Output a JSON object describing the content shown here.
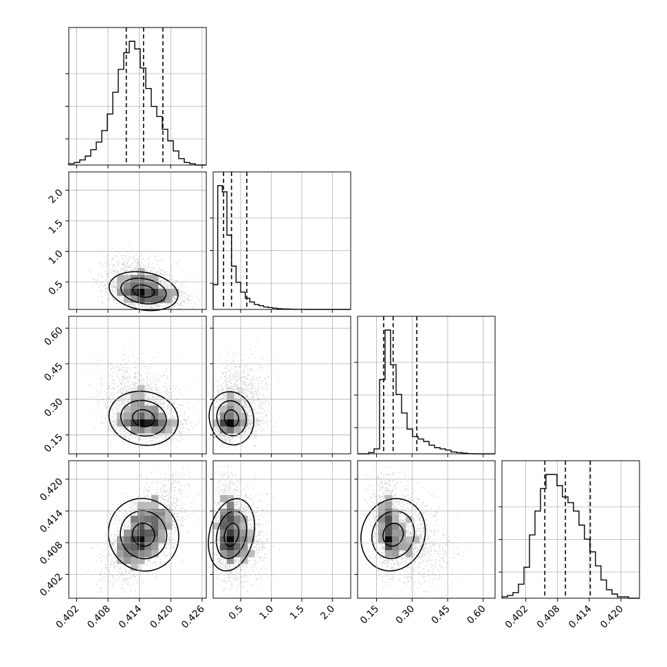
{
  "chart_data": {
    "type": "corner",
    "n_params": 4,
    "params": [
      {
        "range": [
          0.4005,
          0.4268
        ],
        "ticks": [
          0.402,
          0.408,
          0.414,
          0.42,
          0.426
        ],
        "tick_labels": [
          "0.402",
          "0.408",
          "0.414",
          "0.420",
          "0.426"
        ]
      },
      {
        "range": [
          0.05,
          2.3
        ],
        "ticks": [
          0.5,
          1.0,
          1.5,
          2.0
        ],
        "tick_labels": [
          "0.5",
          "1.0",
          "1.5",
          "2.0"
        ]
      },
      {
        "range": [
          0.07,
          0.65
        ],
        "ticks": [
          0.15,
          0.3,
          0.45,
          0.6
        ],
        "tick_labels": [
          "0.15",
          "0.30",
          "0.45",
          "0.60"
        ]
      },
      {
        "range": [
          0.3975,
          0.4235
        ],
        "ticks": [
          0.402,
          0.408,
          0.414,
          0.42
        ],
        "tick_labels": [
          "0.402",
          "0.408",
          "0.414",
          "0.420"
        ]
      }
    ],
    "quantiles": [
      [
        0.4115,
        0.4148,
        0.4185
      ],
      [
        0.22,
        0.35,
        0.6
      ],
      [
        0.18,
        0.22,
        0.32
      ],
      [
        0.4056,
        0.4095,
        0.4142
      ]
    ],
    "histograms": [
      {
        "bins": 25,
        "counts": [
          1,
          2,
          4,
          7,
          12,
          18,
          27,
          40,
          57,
          75,
          88,
          97,
          91,
          76,
          60,
          46,
          38,
          28,
          19,
          11,
          5,
          2,
          1,
          0,
          0
        ]
      },
      {
        "bins": 30,
        "counts": [
          20,
          100,
          95,
          60,
          35,
          22,
          14,
          9,
          6,
          4,
          3,
          2,
          1.5,
          1,
          0.6,
          0.4,
          0.3,
          0.2,
          0.1,
          0.1,
          0,
          0,
          0,
          0,
          0,
          0,
          0,
          0,
          0,
          0
        ]
      },
      {
        "bins": 25,
        "counts": [
          0,
          0,
          1,
          4,
          60,
          100,
          72,
          48,
          33,
          20,
          14,
          12,
          10,
          7,
          5,
          4,
          3,
          1.5,
          1,
          0.5,
          0.2,
          0,
          0,
          0,
          0
        ]
      },
      {
        "bins": 25,
        "counts": [
          1,
          2,
          4,
          10,
          22,
          45,
          62,
          78,
          88,
          88,
          80,
          72,
          68,
          62,
          52,
          42,
          33,
          23,
          13,
          6,
          3,
          1,
          1,
          0,
          0
        ]
      }
    ],
    "scatter_hint": "dense grey scatter with 0.5/1/1.5/2 sigma contours and grey 2D-density shading in each off-diagonal panel"
  }
}
